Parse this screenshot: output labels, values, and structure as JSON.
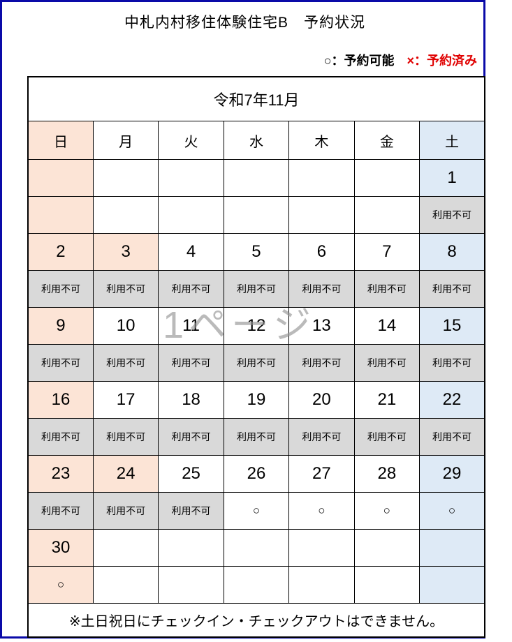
{
  "page": {
    "title": "中札内村移住体験住宅B　予約状況",
    "legend": {
      "available": "○：予約可能",
      "reserved": "×：予約済み"
    },
    "watermark": "1ページ",
    "footer_note": "※土日祝日にチェックイン・チェックアウトはできません。"
  },
  "calendar": {
    "month_label": "令和7年11月",
    "day_headers": [
      "日",
      "月",
      "火",
      "水",
      "木",
      "金",
      "土"
    ],
    "day_header_bgs": [
      "pink",
      "white",
      "white",
      "white",
      "white",
      "white",
      "blue"
    ],
    "status_labels": {
      "unavailable": "利用不可",
      "available": "○"
    },
    "weeks": [
      [
        {
          "date": "",
          "dbg": "pink",
          "status": "",
          "sbg": "pink"
        },
        {
          "date": "",
          "dbg": "white",
          "status": "",
          "sbg": "white"
        },
        {
          "date": "",
          "dbg": "white",
          "status": "",
          "sbg": "white"
        },
        {
          "date": "",
          "dbg": "white",
          "status": "",
          "sbg": "white"
        },
        {
          "date": "",
          "dbg": "white",
          "status": "",
          "sbg": "white"
        },
        {
          "date": "",
          "dbg": "white",
          "status": "",
          "sbg": "white"
        },
        {
          "date": "1",
          "dbg": "blue",
          "status": "利用不可",
          "sbg": "gray"
        }
      ],
      [
        {
          "date": "2",
          "dbg": "pink",
          "status": "利用不可",
          "sbg": "gray"
        },
        {
          "date": "3",
          "dbg": "pink",
          "status": "利用不可",
          "sbg": "gray"
        },
        {
          "date": "4",
          "dbg": "white",
          "status": "利用不可",
          "sbg": "gray"
        },
        {
          "date": "5",
          "dbg": "white",
          "status": "利用不可",
          "sbg": "gray"
        },
        {
          "date": "6",
          "dbg": "white",
          "status": "利用不可",
          "sbg": "gray"
        },
        {
          "date": "7",
          "dbg": "white",
          "status": "利用不可",
          "sbg": "gray"
        },
        {
          "date": "8",
          "dbg": "blue",
          "status": "利用不可",
          "sbg": "gray"
        }
      ],
      [
        {
          "date": "9",
          "dbg": "pink",
          "status": "利用不可",
          "sbg": "gray"
        },
        {
          "date": "10",
          "dbg": "white",
          "status": "利用不可",
          "sbg": "gray"
        },
        {
          "date": "11",
          "dbg": "white",
          "status": "利用不可",
          "sbg": "gray"
        },
        {
          "date": "12",
          "dbg": "white",
          "status": "利用不可",
          "sbg": "gray"
        },
        {
          "date": "13",
          "dbg": "white",
          "status": "利用不可",
          "sbg": "gray"
        },
        {
          "date": "14",
          "dbg": "white",
          "status": "利用不可",
          "sbg": "gray"
        },
        {
          "date": "15",
          "dbg": "blue",
          "status": "利用不可",
          "sbg": "gray"
        }
      ],
      [
        {
          "date": "16",
          "dbg": "pink",
          "status": "利用不可",
          "sbg": "gray"
        },
        {
          "date": "17",
          "dbg": "white",
          "status": "利用不可",
          "sbg": "gray"
        },
        {
          "date": "18",
          "dbg": "white",
          "status": "利用不可",
          "sbg": "gray"
        },
        {
          "date": "19",
          "dbg": "white",
          "status": "利用不可",
          "sbg": "gray"
        },
        {
          "date": "20",
          "dbg": "white",
          "status": "利用不可",
          "sbg": "gray"
        },
        {
          "date": "21",
          "dbg": "white",
          "status": "利用不可",
          "sbg": "gray"
        },
        {
          "date": "22",
          "dbg": "blue",
          "status": "利用不可",
          "sbg": "gray"
        }
      ],
      [
        {
          "date": "23",
          "dbg": "pink",
          "status": "利用不可",
          "sbg": "gray"
        },
        {
          "date": "24",
          "dbg": "pink",
          "status": "利用不可",
          "sbg": "gray"
        },
        {
          "date": "25",
          "dbg": "white",
          "status": "利用不可",
          "sbg": "gray"
        },
        {
          "date": "26",
          "dbg": "white",
          "status": "○",
          "sbg": "white"
        },
        {
          "date": "27",
          "dbg": "white",
          "status": "○",
          "sbg": "white"
        },
        {
          "date": "28",
          "dbg": "white",
          "status": "○",
          "sbg": "white"
        },
        {
          "date": "29",
          "dbg": "blue",
          "status": "○",
          "sbg": "blue"
        }
      ],
      [
        {
          "date": "30",
          "dbg": "pink",
          "status": "○",
          "sbg": "pink"
        },
        {
          "date": "",
          "dbg": "white",
          "status": "",
          "sbg": "white"
        },
        {
          "date": "",
          "dbg": "white",
          "status": "",
          "sbg": "white"
        },
        {
          "date": "",
          "dbg": "white",
          "status": "",
          "sbg": "white"
        },
        {
          "date": "",
          "dbg": "white",
          "status": "",
          "sbg": "white"
        },
        {
          "date": "",
          "dbg": "white",
          "status": "",
          "sbg": "white"
        },
        {
          "date": "",
          "dbg": "blue",
          "status": "",
          "sbg": "blue"
        }
      ]
    ]
  },
  "colors": {
    "frame_border": "#0a0aa8",
    "grid": "#000000",
    "sunday_holiday_bg": "#fce4d6",
    "saturday_bg": "#deeaf6",
    "unavailable_bg": "#d9d9d9",
    "reserved_red": "#e00000",
    "watermark_gray": "#909090"
  }
}
